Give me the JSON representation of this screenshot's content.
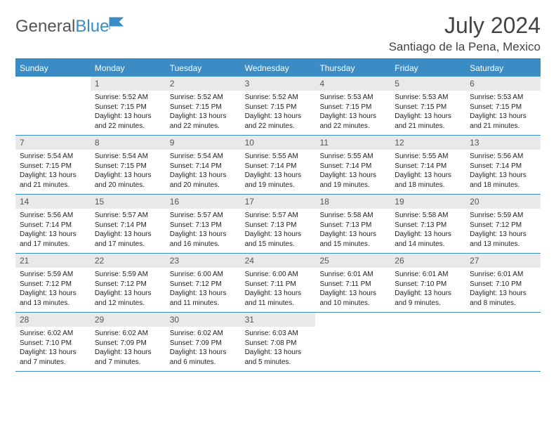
{
  "brand": {
    "part1": "General",
    "part2": "Blue"
  },
  "title": "July 2024",
  "location": "Santiago de la Pena, Mexico",
  "colors": {
    "accent": "#3b8bc4",
    "header_bg": "#3b8bc4",
    "daynum_bg": "#e9e9e9",
    "text": "#222222",
    "muted": "#555555",
    "bg": "#ffffff"
  },
  "weekdays": [
    "Sunday",
    "Monday",
    "Tuesday",
    "Wednesday",
    "Thursday",
    "Friday",
    "Saturday"
  ],
  "start_offset": 1,
  "days": [
    {
      "n": 1,
      "sunrise": "5:52 AM",
      "sunset": "7:15 PM",
      "daylight": "13 hours and 22 minutes."
    },
    {
      "n": 2,
      "sunrise": "5:52 AM",
      "sunset": "7:15 PM",
      "daylight": "13 hours and 22 minutes."
    },
    {
      "n": 3,
      "sunrise": "5:52 AM",
      "sunset": "7:15 PM",
      "daylight": "13 hours and 22 minutes."
    },
    {
      "n": 4,
      "sunrise": "5:53 AM",
      "sunset": "7:15 PM",
      "daylight": "13 hours and 22 minutes."
    },
    {
      "n": 5,
      "sunrise": "5:53 AM",
      "sunset": "7:15 PM",
      "daylight": "13 hours and 21 minutes."
    },
    {
      "n": 6,
      "sunrise": "5:53 AM",
      "sunset": "7:15 PM",
      "daylight": "13 hours and 21 minutes."
    },
    {
      "n": 7,
      "sunrise": "5:54 AM",
      "sunset": "7:15 PM",
      "daylight": "13 hours and 21 minutes."
    },
    {
      "n": 8,
      "sunrise": "5:54 AM",
      "sunset": "7:15 PM",
      "daylight": "13 hours and 20 minutes."
    },
    {
      "n": 9,
      "sunrise": "5:54 AM",
      "sunset": "7:14 PM",
      "daylight": "13 hours and 20 minutes."
    },
    {
      "n": 10,
      "sunrise": "5:55 AM",
      "sunset": "7:14 PM",
      "daylight": "13 hours and 19 minutes."
    },
    {
      "n": 11,
      "sunrise": "5:55 AM",
      "sunset": "7:14 PM",
      "daylight": "13 hours and 19 minutes."
    },
    {
      "n": 12,
      "sunrise": "5:55 AM",
      "sunset": "7:14 PM",
      "daylight": "13 hours and 18 minutes."
    },
    {
      "n": 13,
      "sunrise": "5:56 AM",
      "sunset": "7:14 PM",
      "daylight": "13 hours and 18 minutes."
    },
    {
      "n": 14,
      "sunrise": "5:56 AM",
      "sunset": "7:14 PM",
      "daylight": "13 hours and 17 minutes."
    },
    {
      "n": 15,
      "sunrise": "5:57 AM",
      "sunset": "7:14 PM",
      "daylight": "13 hours and 17 minutes."
    },
    {
      "n": 16,
      "sunrise": "5:57 AM",
      "sunset": "7:13 PM",
      "daylight": "13 hours and 16 minutes."
    },
    {
      "n": 17,
      "sunrise": "5:57 AM",
      "sunset": "7:13 PM",
      "daylight": "13 hours and 15 minutes."
    },
    {
      "n": 18,
      "sunrise": "5:58 AM",
      "sunset": "7:13 PM",
      "daylight": "13 hours and 15 minutes."
    },
    {
      "n": 19,
      "sunrise": "5:58 AM",
      "sunset": "7:13 PM",
      "daylight": "13 hours and 14 minutes."
    },
    {
      "n": 20,
      "sunrise": "5:59 AM",
      "sunset": "7:12 PM",
      "daylight": "13 hours and 13 minutes."
    },
    {
      "n": 21,
      "sunrise": "5:59 AM",
      "sunset": "7:12 PM",
      "daylight": "13 hours and 13 minutes."
    },
    {
      "n": 22,
      "sunrise": "5:59 AM",
      "sunset": "7:12 PM",
      "daylight": "13 hours and 12 minutes."
    },
    {
      "n": 23,
      "sunrise": "6:00 AM",
      "sunset": "7:12 PM",
      "daylight": "13 hours and 11 minutes."
    },
    {
      "n": 24,
      "sunrise": "6:00 AM",
      "sunset": "7:11 PM",
      "daylight": "13 hours and 11 minutes."
    },
    {
      "n": 25,
      "sunrise": "6:01 AM",
      "sunset": "7:11 PM",
      "daylight": "13 hours and 10 minutes."
    },
    {
      "n": 26,
      "sunrise": "6:01 AM",
      "sunset": "7:10 PM",
      "daylight": "13 hours and 9 minutes."
    },
    {
      "n": 27,
      "sunrise": "6:01 AM",
      "sunset": "7:10 PM",
      "daylight": "13 hours and 8 minutes."
    },
    {
      "n": 28,
      "sunrise": "6:02 AM",
      "sunset": "7:10 PM",
      "daylight": "13 hours and 7 minutes."
    },
    {
      "n": 29,
      "sunrise": "6:02 AM",
      "sunset": "7:09 PM",
      "daylight": "13 hours and 7 minutes."
    },
    {
      "n": 30,
      "sunrise": "6:02 AM",
      "sunset": "7:09 PM",
      "daylight": "13 hours and 6 minutes."
    },
    {
      "n": 31,
      "sunrise": "6:03 AM",
      "sunset": "7:08 PM",
      "daylight": "13 hours and 5 minutes."
    }
  ],
  "labels": {
    "sunrise": "Sunrise:",
    "sunset": "Sunset:",
    "daylight": "Daylight:"
  }
}
